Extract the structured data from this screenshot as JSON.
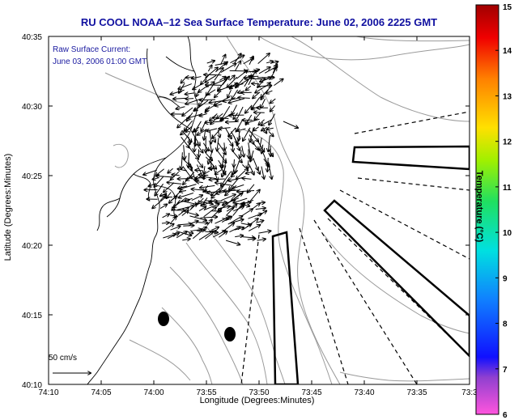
{
  "title": "RU COOL  NOAA–12  Sea Surface Temperature:  June 02, 2006 2225 GMT",
  "legend": {
    "line1": "Raw Surface Current:",
    "line2": "June 03, 2006 01:00 GMT",
    "scale": "50 cm/s"
  },
  "axes": {
    "xlabel": "Longitude (Degrees:Minutes)",
    "ylabel": "Latitude (Degrees:Minutes)",
    "xticks": [
      "74:10",
      "74:05",
      "74:00",
      "73:55",
      "73:50",
      "73:45",
      "73:40",
      "73:35",
      "73:3"
    ],
    "yticks": [
      "40:35",
      "40:30",
      "40:25",
      "40:20",
      "40:15",
      "40:10"
    ]
  },
  "colorbar": {
    "label": "Temperature (°C)",
    "ticks": [
      "15",
      "14",
      "13",
      "12",
      "11",
      "10",
      "9",
      "8",
      "7",
      "6"
    ],
    "min": 6,
    "max": 15
  },
  "colors": {
    "title": "#1010a0",
    "legend_text": "#1a1aa0",
    "contour": "#999999",
    "frame": "#000000"
  }
}
